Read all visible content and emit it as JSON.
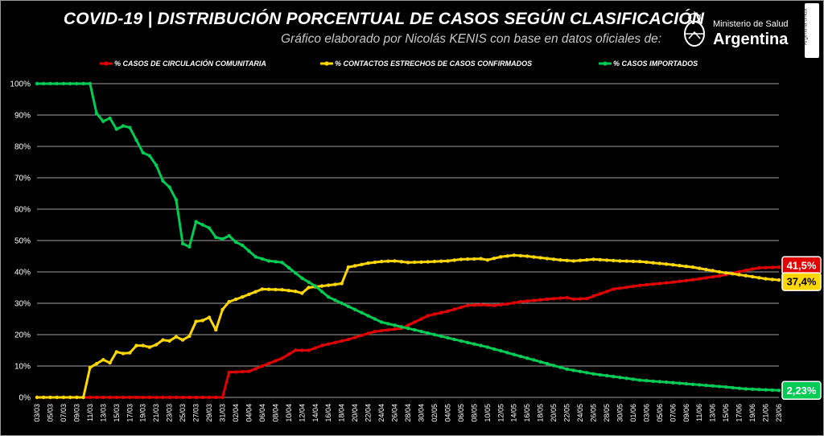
{
  "header": {
    "title": "COVID-19  |  DISTRIBUCIÓN PORCENTUAL DE CASOS SEGÚN CLASIFICACIÓN",
    "subtitle": "Gráfico elaborado por Nicolás KENIS con base en datos oficiales de:"
  },
  "logo": {
    "line1": "Ministerio de Salud",
    "line2": "Argentina",
    "side_tag": "Argentina unida"
  },
  "chart_data": {
    "type": "line",
    "ylim": [
      0,
      100
    ],
    "y_ticks": [
      "0%",
      "10%",
      "20%",
      "30%",
      "40%",
      "50%",
      "60%",
      "70%",
      "80%",
      "90%",
      "100%"
    ],
    "x_start": "03/03",
    "x_end": "23/06",
    "x_tick_labels": [
      "03/03",
      "05/03",
      "07/03",
      "09/03",
      "11/03",
      "13/03",
      "15/03",
      "17/03",
      "19/03",
      "21/03",
      "23/03",
      "25/03",
      "27/03",
      "29/03",
      "31/03",
      "02/04",
      "04/04",
      "06/04",
      "08/04",
      "10/04",
      "12/04",
      "14/04",
      "16/04",
      "18/04",
      "20/04",
      "22/04",
      "24/04",
      "26/04",
      "28/04",
      "30/04",
      "02/05",
      "04/05",
      "06/05",
      "08/05",
      "10/05",
      "12/05",
      "14/05",
      "16/05",
      "18/05",
      "20/05",
      "22/05",
      "24/05",
      "26/05",
      "28/05",
      "30/05",
      "01/06",
      "03/06",
      "05/06",
      "07/06",
      "09/06",
      "11/06",
      "13/06",
      "15/06",
      "17/06",
      "19/06",
      "21/06",
      "23/06"
    ],
    "legend_position": "top",
    "grid": true,
    "series": [
      {
        "name": "% CASOS DE CIRCULACIÓN COMUNITARIA",
        "color": "#e00000",
        "end_label": "41,5%",
        "points": [
          [
            "03/03",
            0
          ],
          [
            "31/03",
            0
          ],
          [
            "01/04",
            8
          ],
          [
            "04/04",
            8.3
          ],
          [
            "09/04",
            12.5
          ],
          [
            "11/04",
            15
          ],
          [
            "13/04",
            15
          ],
          [
            "15/04",
            16.5
          ],
          [
            "19/04",
            18.5
          ],
          [
            "23/04",
            21
          ],
          [
            "27/04",
            22
          ],
          [
            "01/05",
            26
          ],
          [
            "04/05",
            27.5
          ],
          [
            "07/05",
            29.3
          ],
          [
            "09/05",
            29.5
          ],
          [
            "11/05",
            29.3
          ],
          [
            "13/05",
            29.8
          ],
          [
            "15/05",
            30.5
          ],
          [
            "19/05",
            31.3
          ],
          [
            "22/05",
            31.8
          ],
          [
            "23/05",
            31.3
          ],
          [
            "25/05",
            31.5
          ],
          [
            "29/05",
            34.5
          ],
          [
            "02/06",
            35.7
          ],
          [
            "06/06",
            36.5
          ],
          [
            "10/06",
            37.5
          ],
          [
            "14/06",
            38.7
          ],
          [
            "18/06",
            40.5
          ],
          [
            "20/06",
            41.3
          ],
          [
            "23/06",
            41.5
          ]
        ]
      },
      {
        "name": "% CONTACTOS ESTRECHOS DE CASOS CONFIRMADOS",
        "color": "#ffd700",
        "end_label": "37,4%",
        "points": [
          [
            "03/03",
            0
          ],
          [
            "10/03",
            0
          ],
          [
            "11/03",
            9.5
          ],
          [
            "13/03",
            12
          ],
          [
            "14/03",
            11
          ],
          [
            "15/03",
            14.5
          ],
          [
            "16/03",
            14
          ],
          [
            "17/03",
            14.2
          ],
          [
            "18/03",
            16.5
          ],
          [
            "19/03",
            16.5
          ],
          [
            "20/03",
            16
          ],
          [
            "21/03",
            16.8
          ],
          [
            "22/03",
            18.3
          ],
          [
            "23/03",
            18
          ],
          [
            "24/03",
            19.3
          ],
          [
            "25/03",
            18.3
          ],
          [
            "26/03",
            19.5
          ],
          [
            "27/03",
            24.2
          ],
          [
            "28/03",
            24.5
          ],
          [
            "29/03",
            25.5
          ],
          [
            "30/03",
            21.5
          ],
          [
            "31/03",
            28
          ],
          [
            "01/04",
            30.5
          ],
          [
            "03/04",
            32
          ],
          [
            "06/04",
            34.5
          ],
          [
            "09/04",
            34.3
          ],
          [
            "11/04",
            33.8
          ],
          [
            "12/04",
            33.2
          ],
          [
            "13/04",
            35
          ],
          [
            "17/04",
            36
          ],
          [
            "18/04",
            36.3
          ],
          [
            "19/04",
            41.5
          ],
          [
            "22/04",
            42.8
          ],
          [
            "24/04",
            43.3
          ],
          [
            "26/04",
            43.5
          ],
          [
            "28/04",
            43
          ],
          [
            "01/05",
            43.2
          ],
          [
            "04/05",
            43.5
          ],
          [
            "06/05",
            44
          ],
          [
            "09/05",
            44.2
          ],
          [
            "10/05",
            43.8
          ],
          [
            "12/05",
            44.8
          ],
          [
            "14/05",
            45.3
          ],
          [
            "16/05",
            45
          ],
          [
            "18/05",
            44.5
          ],
          [
            "21/05",
            43.8
          ],
          [
            "23/05",
            43.5
          ],
          [
            "26/05",
            44
          ],
          [
            "30/05",
            43.5
          ],
          [
            "02/06",
            43.3
          ],
          [
            "06/06",
            42.5
          ],
          [
            "10/06",
            41.5
          ],
          [
            "14/06",
            40
          ],
          [
            "18/06",
            38.8
          ],
          [
            "21/06",
            37.8
          ],
          [
            "23/06",
            37.4
          ]
        ]
      },
      {
        "name": "% CASOS IMPORTADOS",
        "color": "#00cc55",
        "end_label": "2,23%",
        "points": [
          [
            "03/03",
            100
          ],
          [
            "11/03",
            100
          ],
          [
            "12/03",
            90.5
          ],
          [
            "13/03",
            88
          ],
          [
            "14/03",
            89
          ],
          [
            "15/03",
            85.5
          ],
          [
            "16/03",
            86.5
          ],
          [
            "17/03",
            86
          ],
          [
            "18/03",
            82
          ],
          [
            "19/03",
            78
          ],
          [
            "20/03",
            77
          ],
          [
            "21/03",
            74
          ],
          [
            "22/03",
            69
          ],
          [
            "23/03",
            67
          ],
          [
            "24/03",
            63
          ],
          [
            "25/03",
            49
          ],
          [
            "26/03",
            48
          ],
          [
            "27/03",
            56
          ],
          [
            "28/03",
            55
          ],
          [
            "29/03",
            54
          ],
          [
            "30/03",
            51
          ],
          [
            "31/03",
            50.5
          ],
          [
            "01/04",
            51.5
          ],
          [
            "02/04",
            49.5
          ],
          [
            "03/04",
            48.5
          ],
          [
            "05/04",
            44.8
          ],
          [
            "07/04",
            43.5
          ],
          [
            "09/04",
            43
          ],
          [
            "12/04",
            38
          ],
          [
            "14/04",
            35.5
          ],
          [
            "16/04",
            32
          ],
          [
            "20/04",
            28
          ],
          [
            "24/04",
            24
          ],
          [
            "26/04",
            23
          ],
          [
            "30/04",
            21
          ],
          [
            "04/05",
            19
          ],
          [
            "10/05",
            16
          ],
          [
            "16/05",
            12.5
          ],
          [
            "22/05",
            9
          ],
          [
            "26/05",
            7.5
          ],
          [
            "02/06",
            5.5
          ],
          [
            "08/06",
            4.5
          ],
          [
            "14/06",
            3.5
          ],
          [
            "18/06",
            2.7
          ],
          [
            "23/06",
            2.23
          ]
        ]
      }
    ]
  }
}
